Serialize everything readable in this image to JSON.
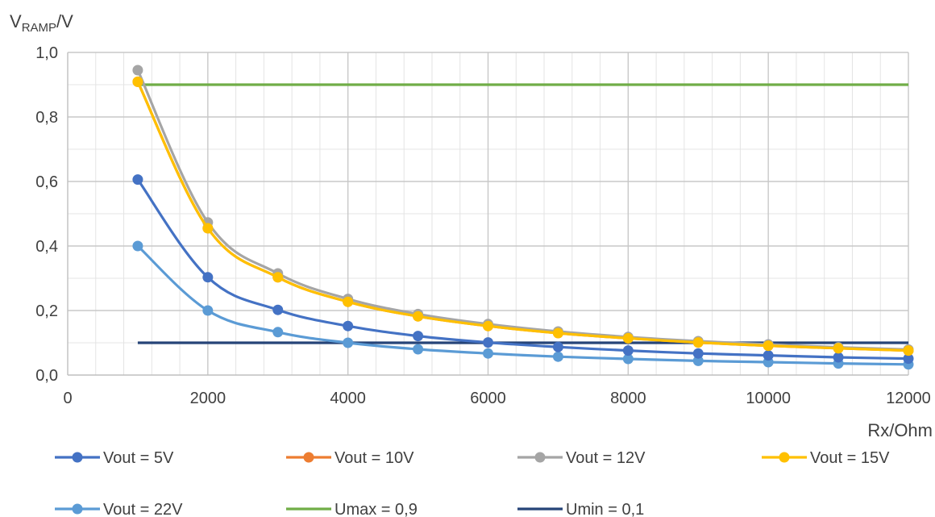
{
  "chart_data": {
    "type": "line",
    "ylabel_main": "V",
    "ylabel_sub": "RAMP",
    "ylabel_suffix": "/V",
    "xlabel": "Rx/Ohm",
    "xlim": [
      0,
      12000
    ],
    "ylim": [
      0,
      1.0
    ],
    "x_ticks": [
      0,
      2000,
      4000,
      6000,
      8000,
      10000,
      12000
    ],
    "x_tick_labels": [
      "0",
      "2000",
      "4000",
      "6000",
      "8000",
      "10000",
      "12000"
    ],
    "y_ticks": [
      0,
      0.2,
      0.4,
      0.6,
      0.8,
      1.0
    ],
    "y_tick_labels": [
      "0,0",
      "0,2",
      "0,4",
      "0,6",
      "0,8",
      "1,0"
    ],
    "grid": true,
    "legend_position": "bottom",
    "x": [
      1000,
      2000,
      3000,
      4000,
      5000,
      6000,
      7000,
      8000,
      9000,
      10000,
      11000,
      12000
    ],
    "series": [
      {
        "name": "Vout = 5V",
        "color": "#4472c4",
        "markers": true,
        "values": [
          0.606,
          0.303,
          0.202,
          0.152,
          0.121,
          0.101,
          0.087,
          0.076,
          0.067,
          0.061,
          0.055,
          0.051
        ]
      },
      {
        "name": "Vout = 10V",
        "color": "#ed7d31",
        "markers": true,
        "values": [
          0.909,
          0.455,
          0.303,
          0.227,
          0.182,
          0.152,
          0.13,
          0.114,
          0.101,
          0.091,
          0.083,
          0.076
        ]
      },
      {
        "name": "Vout = 12V",
        "color": "#a5a5a5",
        "markers": true,
        "values": [
          0.945,
          0.473,
          0.315,
          0.236,
          0.189,
          0.158,
          0.135,
          0.118,
          0.105,
          0.095,
          0.086,
          0.079
        ]
      },
      {
        "name": "Vout = 15V",
        "color": "#ffc000",
        "markers": true,
        "values": [
          0.909,
          0.455,
          0.303,
          0.227,
          0.182,
          0.152,
          0.13,
          0.114,
          0.101,
          0.091,
          0.083,
          0.076
        ]
      },
      {
        "name": "Vout = 22V",
        "color": "#5b9bd5",
        "markers": true,
        "values": [
          0.4,
          0.2,
          0.133,
          0.1,
          0.08,
          0.067,
          0.057,
          0.05,
          0.044,
          0.04,
          0.036,
          0.033
        ]
      },
      {
        "name": "Umax = 0,9",
        "color": "#70ad47",
        "markers": false,
        "values": [
          0.9,
          0.9,
          0.9,
          0.9,
          0.9,
          0.9,
          0.9,
          0.9,
          0.9,
          0.9,
          0.9,
          0.9
        ]
      },
      {
        "name": "Umin = 0,1",
        "color": "#264478",
        "markers": false,
        "values": [
          0.1,
          0.1,
          0.1,
          0.1,
          0.1,
          0.1,
          0.1,
          0.1,
          0.1,
          0.1,
          0.1,
          0.1
        ]
      }
    ]
  }
}
